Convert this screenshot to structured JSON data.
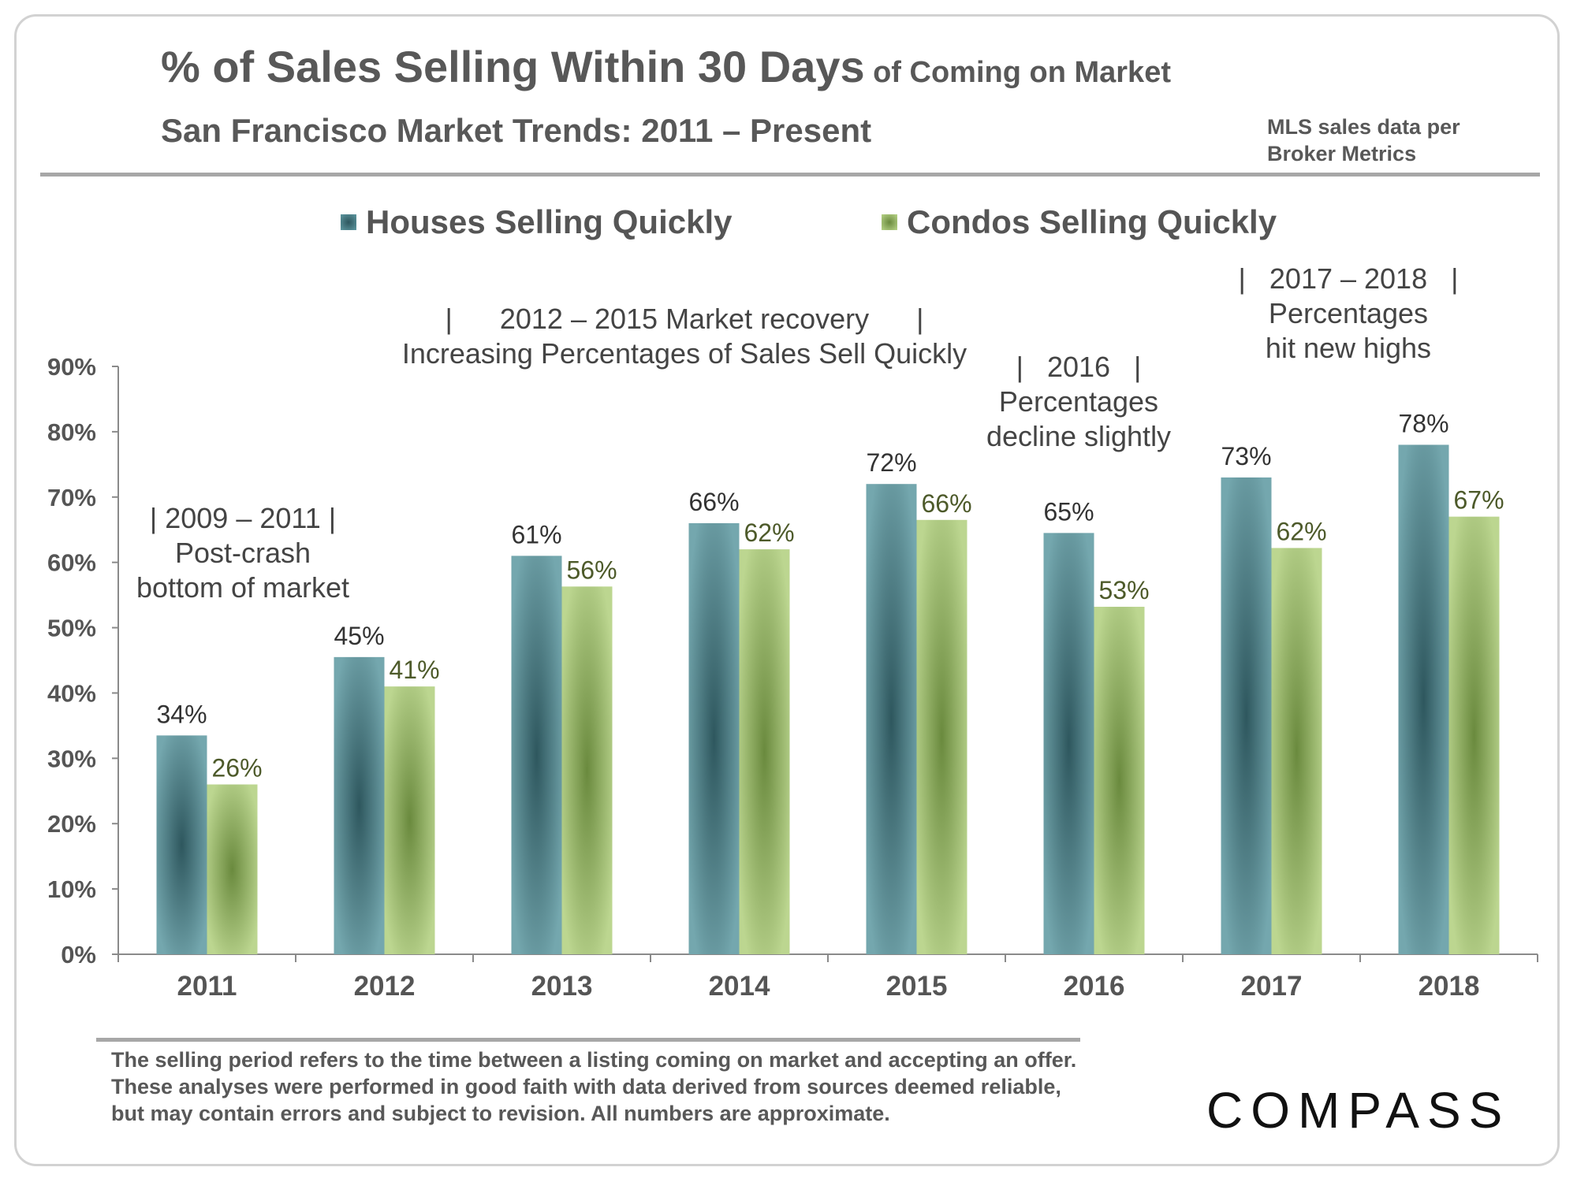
{
  "title": {
    "main": "% of Sales Selling Within 30 Days",
    "suffix": "of Coming on Market"
  },
  "subtitle": "San Francisco Market Trends: 2011 – Present",
  "source": "MLS sales data per Broker Metrics",
  "legend": {
    "houses": "Houses Selling Quickly",
    "condos": "Condos Selling Quickly"
  },
  "annotations": [
    {
      "lines": [
        "| 2009 – 2011 |",
        "Post-crash",
        "bottom of market"
      ]
    },
    {
      "lines": [
        "|      2012 – 2015 Market recovery      |",
        "Increasing Percentages of Sales Sell Quickly"
      ]
    },
    {
      "lines": [
        "|   2016   |",
        "Percentages",
        "decline slightly"
      ]
    },
    {
      "lines": [
        "|   2017 – 2018   |",
        "Percentages",
        "hit new highs"
      ]
    }
  ],
  "chart_data": {
    "type": "bar",
    "categories": [
      "2011",
      "2012",
      "2013",
      "2014",
      "2015",
      "2016",
      "2017",
      "2018"
    ],
    "series": [
      {
        "name": "Houses Selling Quickly",
        "values": [
          33.5,
          45.5,
          61,
          66,
          72,
          64.5,
          73,
          78
        ],
        "labels": [
          "34%",
          "45%",
          "61%",
          "66%",
          "72%",
          "65%",
          "73%",
          "78%"
        ]
      },
      {
        "name": "Condos Selling Quickly",
        "values": [
          26,
          41,
          56.3,
          62,
          66.5,
          53.2,
          62.2,
          67
        ],
        "labels": [
          "26%",
          "41%",
          "56%",
          "62%",
          "66%",
          "53%",
          "62%",
          "67%"
        ]
      }
    ],
    "ylim": [
      0,
      90
    ],
    "yticks": [
      "0%",
      "10%",
      "20%",
      "30%",
      "40%",
      "50%",
      "60%",
      "70%",
      "80%",
      "90%"
    ],
    "ylabel": "",
    "xlabel": ""
  },
  "footnote": "The selling period refers to the time between a listing coming on market and accepting an offer. These analyses were performed in good faith with data derived from sources deemed reliable, but may contain errors and subject to revision. All numbers are approximate.",
  "logo": "COMPASS",
  "colors": {
    "houses_dark": "#2e575e",
    "houses_light": "#74a7ae",
    "condos_dark": "#6a8a3e",
    "condos_light": "#bcd690"
  }
}
